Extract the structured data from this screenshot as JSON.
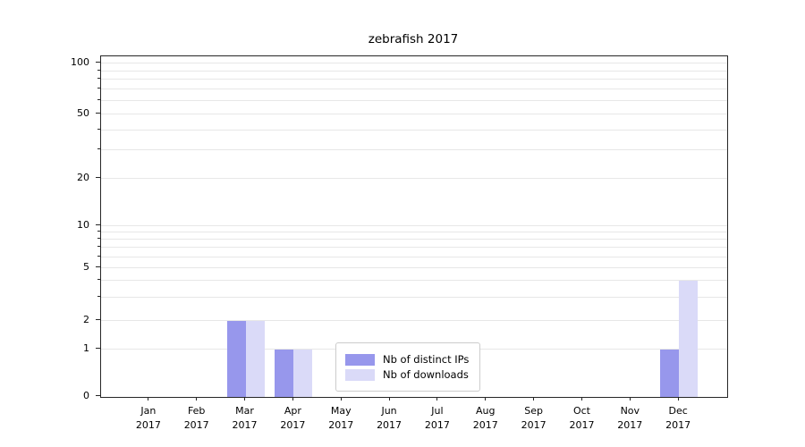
{
  "title": "zebrafish 2017",
  "axes": {
    "x_tick_labels": [
      "Jan\n2017",
      "Feb\n2017",
      "Mar\n2017",
      "Apr\n2017",
      "May\n2017",
      "Jun\n2017",
      "Jul\n2017",
      "Aug\n2017",
      "Sep\n2017",
      "Oct\n2017",
      "Nov\n2017",
      "Dec\n2017"
    ],
    "y_tick_labels": [
      "0",
      "1",
      "2",
      "5",
      "10",
      "20",
      "50",
      "100"
    ]
  },
  "chart_data": {
    "type": "bar",
    "title": "zebrafish 2017",
    "categories": [
      "Jan 2017",
      "Feb 2017",
      "Mar 2017",
      "Apr 2017",
      "May 2017",
      "Jun 2017",
      "Jul 2017",
      "Aug 2017",
      "Sep 2017",
      "Oct 2017",
      "Nov 2017",
      "Dec 2017"
    ],
    "series": [
      {
        "name": "Nb of distinct IPs",
        "color": "#9797ec",
        "values": [
          0,
          0,
          2,
          1,
          0,
          0,
          0,
          0,
          0,
          0,
          0,
          1
        ]
      },
      {
        "name": "Nb of downloads",
        "color": "#dadaf8",
        "values": [
          0,
          0,
          2,
          1,
          0,
          0,
          0,
          0,
          0,
          0,
          0,
          4
        ]
      }
    ],
    "xlabel": "",
    "ylabel": "",
    "yscale": "log (with zero baseline)",
    "ylim": [
      0,
      110
    ],
    "grid": "horizontal, major + minor log ticks",
    "legend_position": "lower center",
    "y_major_ticks": [
      0,
      1,
      2,
      5,
      10,
      20,
      50,
      100
    ],
    "y_minor_ticks": [
      3,
      4,
      6,
      7,
      8,
      9,
      30,
      40,
      60,
      70,
      80,
      90
    ],
    "y_scale_map": {
      "values": [
        0,
        1,
        2,
        3,
        4,
        5,
        6,
        7,
        8,
        9,
        10,
        20,
        30,
        40,
        50,
        60,
        70,
        80,
        90,
        100
      ],
      "fractions": [
        0,
        0.139,
        0.223,
        0.292,
        0.34,
        0.378,
        0.41,
        0.438,
        0.461,
        0.482,
        0.501,
        0.64,
        0.724,
        0.783,
        0.829,
        0.868,
        0.902,
        0.931,
        0.956,
        0.979
      ]
    }
  },
  "legend": {
    "entries": [
      "Nb of distinct IPs",
      "Nb of downloads"
    ]
  },
  "colors": {
    "distinct_ips": "#9797ec",
    "downloads": "#dadaf8",
    "grid": "#e7e7e7",
    "spine": "#262626"
  }
}
